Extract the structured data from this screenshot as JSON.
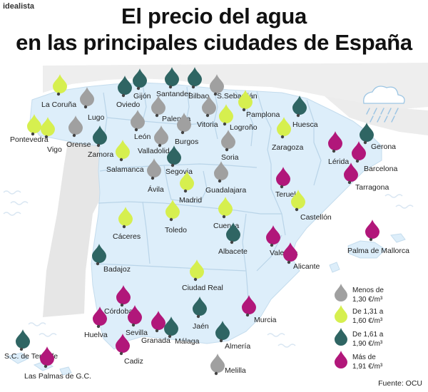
{
  "brand": "idealista",
  "title_line1": "El precio del agua",
  "title_line2": "en las principales ciudades de España",
  "source": "Fuente: OCU",
  "colors": {
    "gray": "#a0a0a0",
    "lime": "#d6ef4f",
    "teal": "#2f6563",
    "magenta": "#b1177a"
  },
  "legend": [
    {
      "cat": "gray",
      "line1": "Menos de",
      "line2": "1,30 €/m³"
    },
    {
      "cat": "lime",
      "line1": "De 1,31 a",
      "line2": "1,60 €/m³"
    },
    {
      "cat": "teal",
      "line1": "De 1,61 a",
      "line2": "1,90 €/m³"
    },
    {
      "cat": "magenta",
      "line1": "Más de",
      "line2": "1,91 €/m³"
    }
  ],
  "cities": [
    {
      "name": "La Coruña",
      "cat": "lime"
    },
    {
      "name": "Lugo",
      "cat": "gray"
    },
    {
      "name": "Gijón",
      "cat": "teal"
    },
    {
      "name": "Oviedo",
      "cat": "teal"
    },
    {
      "name": "Santander",
      "cat": "teal"
    },
    {
      "name": "Bilbao",
      "cat": "teal"
    },
    {
      "name": "S.Sebastián",
      "cat": "gray"
    },
    {
      "name": "Pamplona",
      "cat": "lime"
    },
    {
      "name": "Vitoria",
      "cat": "gray"
    },
    {
      "name": "Logroño",
      "cat": "lime"
    },
    {
      "name": "Palencia",
      "cat": "gray"
    },
    {
      "name": "Burgos",
      "cat": "gray"
    },
    {
      "name": "León",
      "cat": "gray"
    },
    {
      "name": "Huesca",
      "cat": "teal"
    },
    {
      "name": "Pontevedra",
      "cat": "lime"
    },
    {
      "name": "Vigo",
      "cat": "lime"
    },
    {
      "name": "Orense",
      "cat": "gray"
    },
    {
      "name": "Zamora",
      "cat": "teal"
    },
    {
      "name": "Valladolid",
      "cat": "gray"
    },
    {
      "name": "Soria",
      "cat": "gray"
    },
    {
      "name": "Zaragoza",
      "cat": "lime"
    },
    {
      "name": "Lérida",
      "cat": "magenta"
    },
    {
      "name": "Gerona",
      "cat": "teal"
    },
    {
      "name": "Barcelona",
      "cat": "magenta"
    },
    {
      "name": "Tarragona",
      "cat": "magenta"
    },
    {
      "name": "Salamanca",
      "cat": "lime"
    },
    {
      "name": "Segovia",
      "cat": "teal"
    },
    {
      "name": "Ávila",
      "cat": "gray"
    },
    {
      "name": "Guadalajara",
      "cat": "gray"
    },
    {
      "name": "Madrid",
      "cat": "lime"
    },
    {
      "name": "Teruel",
      "cat": "magenta"
    },
    {
      "name": "Castellón",
      "cat": "lime"
    },
    {
      "name": "Toledo",
      "cat": "lime"
    },
    {
      "name": "Cuenca",
      "cat": "lime"
    },
    {
      "name": "Cáceres",
      "cat": "lime"
    },
    {
      "name": "Albacete",
      "cat": "teal"
    },
    {
      "name": "Valencia",
      "cat": "magenta"
    },
    {
      "name": "Palma de Mallorca",
      "cat": "magenta"
    },
    {
      "name": "Alicante",
      "cat": "magenta"
    },
    {
      "name": "Badajoz",
      "cat": "teal"
    },
    {
      "name": "Ciudad Real",
      "cat": "lime"
    },
    {
      "name": "Córdoba",
      "cat": "magenta"
    },
    {
      "name": "Jaén",
      "cat": "teal"
    },
    {
      "name": "Murcia",
      "cat": "magenta"
    },
    {
      "name": "Huelva",
      "cat": "magenta"
    },
    {
      "name": "Sevilla",
      "cat": "magenta"
    },
    {
      "name": "Granada",
      "cat": "magenta"
    },
    {
      "name": "Málaga",
      "cat": "teal"
    },
    {
      "name": "Almería",
      "cat": "teal"
    },
    {
      "name": "Cadiz",
      "cat": "magenta"
    },
    {
      "name": "S.C. de Tenerife",
      "cat": "teal"
    },
    {
      "name": "Las Palmas de G.C.",
      "cat": "magenta"
    },
    {
      "name": "Melilla",
      "cat": "gray"
    }
  ]
}
